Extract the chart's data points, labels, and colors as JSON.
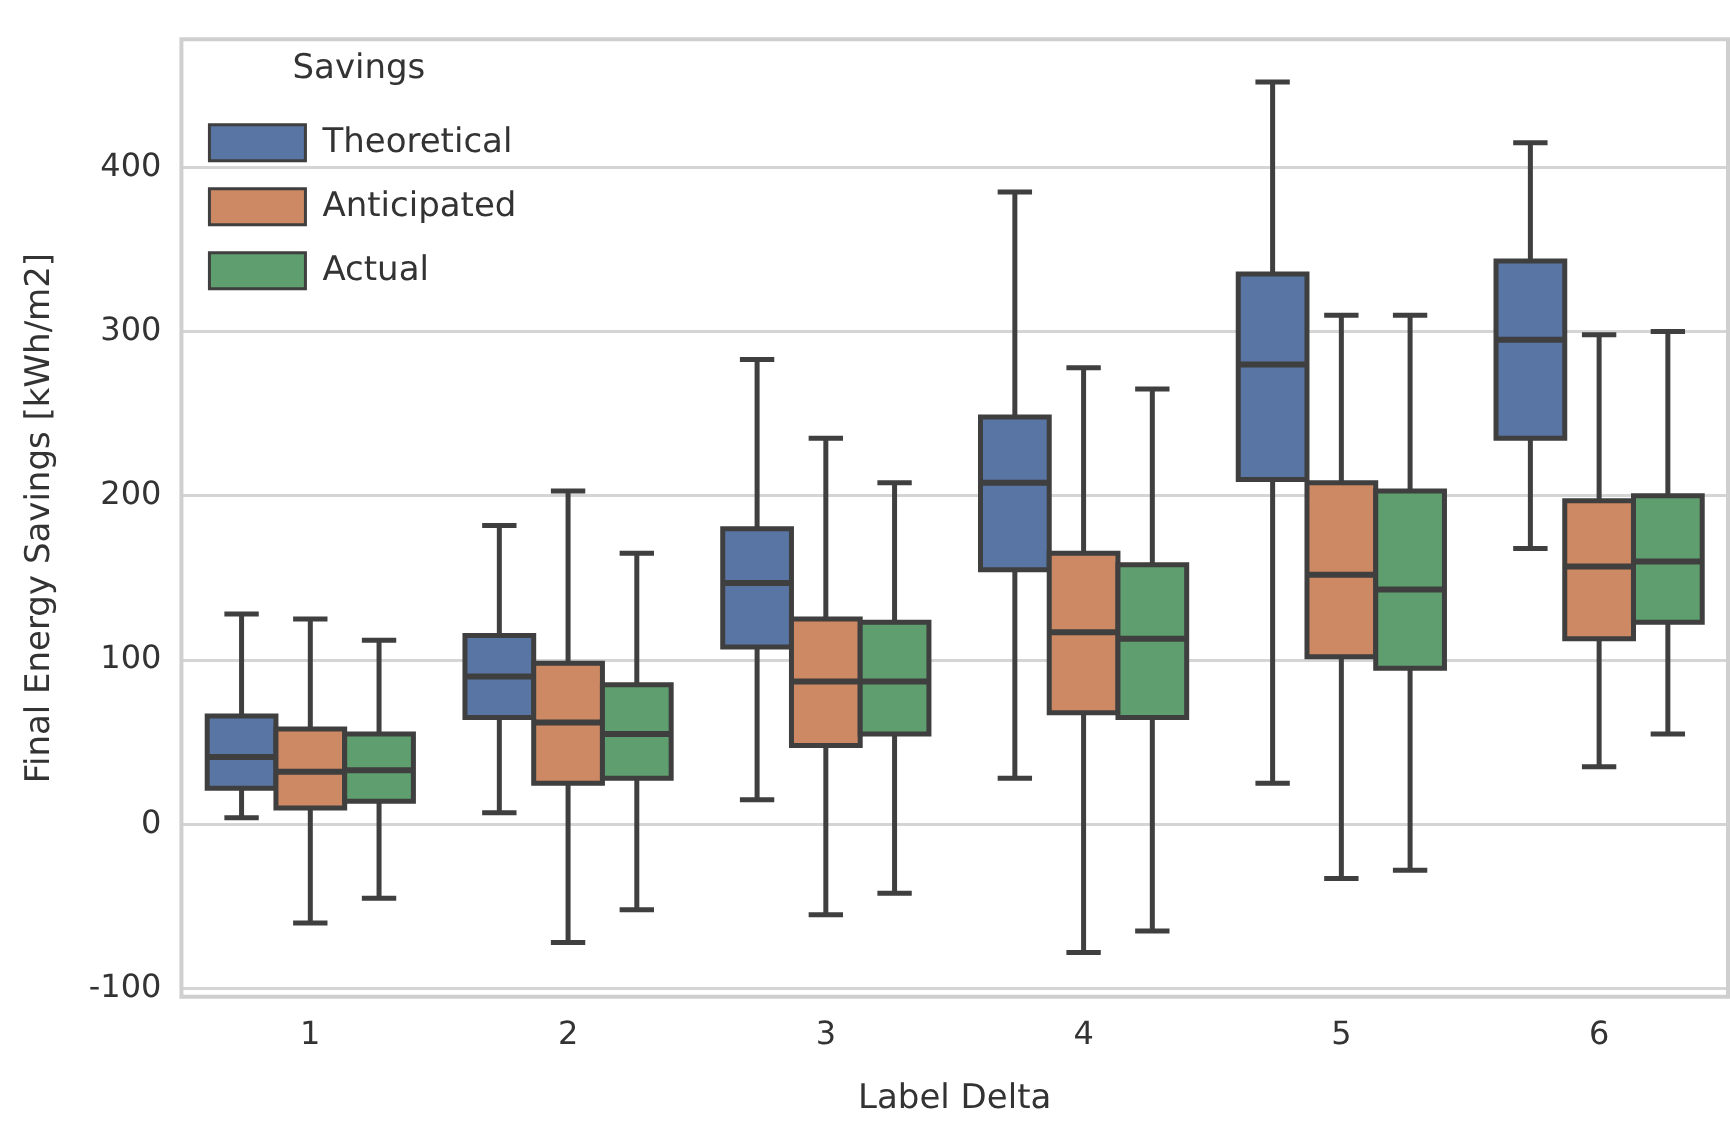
{
  "chart_data": {
    "type": "box",
    "xlabel": "Label Delta",
    "ylabel": "Final Energy Savings [kWh/m2]",
    "legend_title": "Savings",
    "categories": [
      "1",
      "2",
      "3",
      "4",
      "5",
      "6"
    ],
    "series": [
      {
        "name": "Theoretical",
        "color": "#5875a4",
        "boxes": [
          {
            "low": 4,
            "q1": 22,
            "median": 41,
            "q3": 66,
            "high": 128
          },
          {
            "low": 7,
            "q1": 65,
            "median": 90,
            "q3": 115,
            "high": 182
          },
          {
            "low": 15,
            "q1": 108,
            "median": 147,
            "q3": 180,
            "high": 283
          },
          {
            "low": 28,
            "q1": 155,
            "median": 208,
            "q3": 248,
            "high": 385
          },
          {
            "low": 25,
            "q1": 210,
            "median": 280,
            "q3": 335,
            "high": 452
          },
          {
            "low": 168,
            "q1": 235,
            "median": 295,
            "q3": 343,
            "high": 415
          }
        ]
      },
      {
        "name": "Anticipated",
        "color": "#cc8963",
        "boxes": [
          {
            "low": -60,
            "q1": 10,
            "median": 32,
            "q3": 58,
            "high": 125
          },
          {
            "low": -72,
            "q1": 25,
            "median": 62,
            "q3": 98,
            "high": 203
          },
          {
            "low": -55,
            "q1": 48,
            "median": 87,
            "q3": 125,
            "high": 235
          },
          {
            "low": -78,
            "q1": 68,
            "median": 117,
            "q3": 165,
            "high": 278
          },
          {
            "low": -33,
            "q1": 102,
            "median": 152,
            "q3": 208,
            "high": 310
          },
          {
            "low": 35,
            "q1": 113,
            "median": 157,
            "q3": 197,
            "high": 298
          }
        ]
      },
      {
        "name": "Actual",
        "color": "#5f9e6e",
        "boxes": [
          {
            "low": -45,
            "q1": 14,
            "median": 33,
            "q3": 55,
            "high": 112
          },
          {
            "low": -52,
            "q1": 28,
            "median": 55,
            "q3": 85,
            "high": 165
          },
          {
            "low": -42,
            "q1": 55,
            "median": 87,
            "q3": 123,
            "high": 208
          },
          {
            "low": -65,
            "q1": 65,
            "median": 113,
            "q3": 158,
            "high": 265
          },
          {
            "low": -28,
            "q1": 95,
            "median": 143,
            "q3": 203,
            "high": 310
          },
          {
            "low": 55,
            "q1": 123,
            "median": 160,
            "q3": 200,
            "high": 300
          }
        ]
      }
    ],
    "ylim": [
      -105,
      478
    ],
    "yticks": [
      -100,
      0,
      100,
      200,
      300,
      400
    ],
    "grid": "y",
    "legend": "top left"
  }
}
